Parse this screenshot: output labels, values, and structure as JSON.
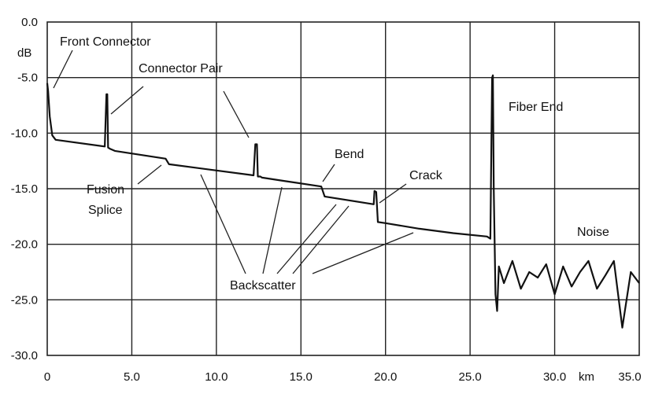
{
  "chart_data": {
    "type": "line",
    "title": "",
    "xlabel": "",
    "ylabel": "",
    "x_unit": "km",
    "y_unit": "dB",
    "xlim": [
      0,
      35
    ],
    "ylim": [
      -30,
      0
    ],
    "x_ticks": [
      0,
      5,
      10,
      15,
      20,
      25,
      30,
      35
    ],
    "x_tick_labels": [
      "0",
      "5.0",
      "10.0",
      "15.0",
      "20.0",
      "25.0",
      "30.0",
      "35.0"
    ],
    "y_ticks": [
      0,
      -5,
      -10,
      -15,
      -20,
      -25,
      -30
    ],
    "y_tick_labels": [
      "0.0",
      "-5.0",
      "-10.0",
      "-15.0",
      "-20.0",
      "-25.0",
      "-30.0"
    ],
    "grid": true,
    "series": [
      {
        "values_desc": "OTDR trace: distance (km) vs attenuation (dB)",
        "x": [
          0,
          0.05,
          0.15,
          0.3,
          0.5,
          3.4,
          3.5,
          3.55,
          3.6,
          3.7,
          4.0,
          7.0,
          7.2,
          12.2,
          12.3,
          12.4,
          12.45,
          12.6,
          12.7,
          14.0,
          16.2,
          16.4,
          19.3,
          19.35,
          19.45,
          19.55,
          20.0,
          22.0,
          24.0,
          26.0,
          26.2,
          26.3,
          26.35,
          26.4,
          26.5,
          26.6,
          26.7,
          27.0,
          27.5,
          28.0,
          28.5,
          29.0,
          29.5,
          30.0,
          30.5,
          31.0,
          31.5,
          32.0,
          32.5,
          33.0,
          33.5,
          34.0,
          34.5,
          35.0
        ],
        "y": [
          -5.5,
          -6.2,
          -8.5,
          -10.2,
          -10.6,
          -11.2,
          -6.5,
          -6.5,
          -11.3,
          -11.4,
          -11.6,
          -12.3,
          -12.8,
          -13.8,
          -11.0,
          -11.0,
          -13.9,
          -13.9,
          -14.0,
          -14.3,
          -14.8,
          -15.7,
          -16.4,
          -15.2,
          -15.3,
          -18.0,
          -18.1,
          -18.6,
          -19.0,
          -19.3,
          -19.5,
          -5.0,
          -4.8,
          -15.0,
          -24.5,
          -26.0,
          -22.0,
          -23.5,
          -21.5,
          -24.0,
          -22.5,
          -23.0,
          -21.8,
          -24.5,
          -22.0,
          -23.8,
          -22.5,
          -21.5,
          -24.0,
          -22.8,
          -21.5,
          -27.5,
          -22.5,
          -23.5
        ]
      }
    ],
    "annotations": [
      "Front Connector",
      "Connector Pair",
      "Fusion Splice",
      "Bend",
      "Crack",
      "Fiber End",
      "Noise",
      "Backscatter"
    ]
  },
  "labels": {
    "front_connector": "Front Connector",
    "connector_pair": "Connector Pair",
    "fusion": "Fusion",
    "splice": "Splice",
    "bend": "Bend",
    "crack": "Crack",
    "fiber_end": "Fiber End",
    "noise": "Noise",
    "backscatter": "Backscatter"
  }
}
